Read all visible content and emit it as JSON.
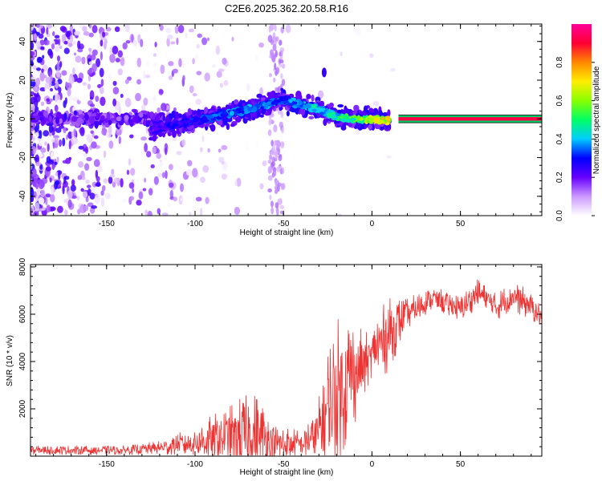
{
  "title": "C2E6.2025.362.20.58.R16",
  "chart_data": [
    {
      "type": "heatmap",
      "name": "spectrogram",
      "xlabel": "Height of straight line (km)",
      "ylabel": "Frequency (Hz)",
      "xlim": [
        -193,
        96
      ],
      "ylim": [
        -50,
        49
      ],
      "xticks": [
        -150,
        -100,
        -50,
        0,
        50
      ],
      "yticks": [
        -40,
        -20,
        0,
        20,
        40
      ],
      "colorbar": {
        "label": "Normalized spectral amplitude",
        "range": [
          0,
          1
        ],
        "ticks": [
          "0.0",
          "0.2",
          "0.4",
          "0.6",
          "0.8"
        ],
        "tick_values": [
          0.0,
          0.2,
          0.4,
          0.6,
          0.8
        ],
        "colors": [
          "#ffffff",
          "#cc99ff",
          "#6600ff",
          "#0000ff",
          "#00ccff",
          "#00ff66",
          "#88ff00",
          "#ffee00",
          "#ff8800",
          "#ff0033",
          "#ff0099"
        ]
      },
      "ridge": [
        {
          "x": -125,
          "f": -6,
          "a": 0.25
        },
        {
          "x": -110,
          "f": -3,
          "a": 0.3
        },
        {
          "x": -95,
          "f": 0,
          "a": 0.33
        },
        {
          "x": -80,
          "f": 3,
          "a": 0.38
        },
        {
          "x": -65,
          "f": 6,
          "a": 0.4
        },
        {
          "x": -50,
          "f": 10,
          "a": 0.38
        },
        {
          "x": -40,
          "f": 7,
          "a": 0.42
        },
        {
          "x": -30,
          "f": 5,
          "a": 0.45
        },
        {
          "x": -20,
          "f": 1,
          "a": 0.5
        },
        {
          "x": -10,
          "f": 0,
          "a": 0.6
        },
        {
          "x": 0,
          "f": 0,
          "a": 0.7
        },
        {
          "x": 10,
          "f": -1,
          "a": 0.75
        },
        {
          "x": 15,
          "f": 0,
          "a": 0.95
        },
        {
          "x": 96,
          "f": 0,
          "a": 0.95
        }
      ],
      "isolated_feature": {
        "x": -27,
        "f": 24,
        "a": 0.25
      }
    },
    {
      "type": "line",
      "name": "snr",
      "xlabel": "Height of straight line (km)",
      "ylabel": "SNR (10 * v/v)",
      "xlim": [
        -193,
        96
      ],
      "ylim": [
        0,
        8100
      ],
      "xticks": [
        -150,
        -100,
        -50,
        0,
        50
      ],
      "yticks": [
        2000,
        4000,
        6000,
        8000
      ],
      "color": "#ee3333",
      "envelope": [
        {
          "x": -193,
          "base": 250,
          "amp": 200
        },
        {
          "x": -140,
          "base": 250,
          "amp": 200
        },
        {
          "x": -120,
          "base": 350,
          "amp": 300
        },
        {
          "x": -100,
          "base": 600,
          "amp": 700
        },
        {
          "x": -85,
          "base": 800,
          "amp": 1200
        },
        {
          "x": -75,
          "base": 800,
          "amp": 1700
        },
        {
          "x": -65,
          "base": 900,
          "amp": 1800
        },
        {
          "x": -55,
          "base": 500,
          "amp": 900
        },
        {
          "x": -40,
          "base": 500,
          "amp": 600
        },
        {
          "x": -30,
          "base": 1000,
          "amp": 1500
        },
        {
          "x": -25,
          "base": 2000,
          "amp": 2800
        },
        {
          "x": -20,
          "base": 2600,
          "amp": 3200
        },
        {
          "x": -15,
          "base": 3200,
          "amp": 3000
        },
        {
          "x": -5,
          "base": 3800,
          "amp": 1500
        },
        {
          "x": 0,
          "base": 4300,
          "amp": 900
        },
        {
          "x": 5,
          "base": 4800,
          "amp": 1800
        },
        {
          "x": 10,
          "base": 5200,
          "amp": 1500
        },
        {
          "x": 20,
          "base": 6000,
          "amp": 700
        },
        {
          "x": 35,
          "base": 6700,
          "amp": 500
        },
        {
          "x": 50,
          "base": 6200,
          "amp": 600
        },
        {
          "x": 60,
          "base": 6900,
          "amp": 600
        },
        {
          "x": 70,
          "base": 6300,
          "amp": 600
        },
        {
          "x": 80,
          "base": 6800,
          "amp": 700
        },
        {
          "x": 90,
          "base": 6300,
          "amp": 600
        },
        {
          "x": 96,
          "base": 5900,
          "amp": 500
        }
      ]
    }
  ]
}
